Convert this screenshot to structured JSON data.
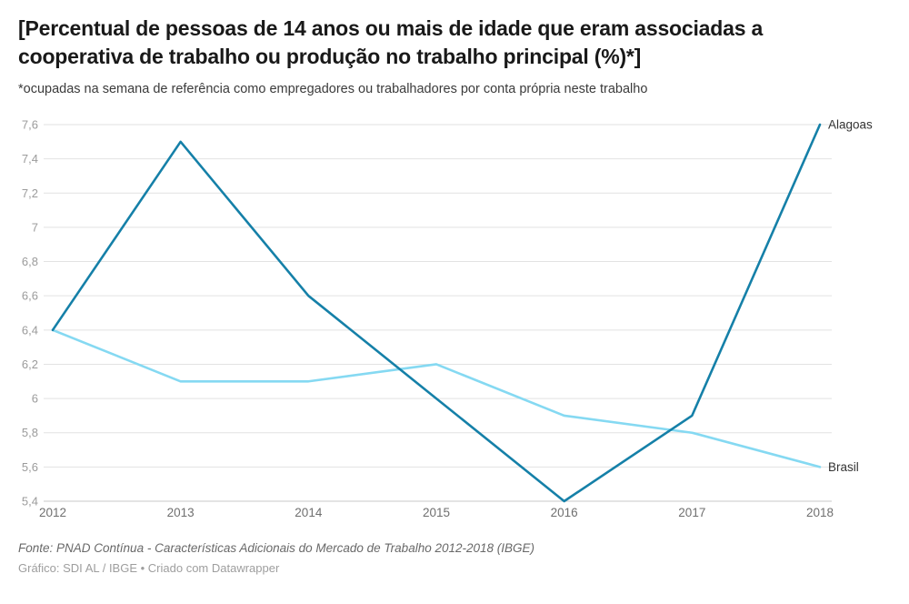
{
  "header": {
    "title": "[Percentual de pessoas de 14 anos ou mais de idade que eram associadas a\ncooperativa de trabalho ou produção no trabalho principal (%)*]",
    "subtitle": "*ocupadas na semana de referência como empregadores ou trabalhadores por conta própria neste trabalho"
  },
  "footer": {
    "source": "Fonte: PNAD Contínua - Características Adicionais do Mercado de Trabalho 2012-2018 (IBGE)",
    "byline": "Gráfico: SDI AL / IBGE • Criado com Datawrapper"
  },
  "chart_data": {
    "type": "line",
    "x": [
      "2012",
      "2013",
      "2014",
      "2015",
      "2016",
      "2017",
      "2018"
    ],
    "series": [
      {
        "name": "Alagoas",
        "values": [
          6.4,
          7.5,
          6.6,
          6.0,
          5.4,
          5.9,
          7.6
        ],
        "color": "#1580a8"
      },
      {
        "name": "Brasil",
        "values": [
          6.4,
          6.1,
          6.1,
          6.2,
          5.9,
          5.8,
          5.6
        ],
        "color": "#85d9f2"
      }
    ],
    "title": "[Percentual de pessoas de 14 anos ou mais de idade que eram associadas a cooperativa de trabalho ou produção no trabalho principal (%)*]",
    "xlabel": "",
    "ylabel": "",
    "ylim": [
      5.4,
      7.6
    ],
    "ytick_step": 0.2,
    "decimal_separator": ",",
    "grid": true,
    "legend_position": "line-end-labels",
    "colors": {
      "gridline": "#e2e2e2",
      "baseline": "#c9c9c9",
      "y_tick_text": "#9b9b9b",
      "x_tick_text": "#6f6f6f",
      "series_label_text": "#333333"
    }
  }
}
